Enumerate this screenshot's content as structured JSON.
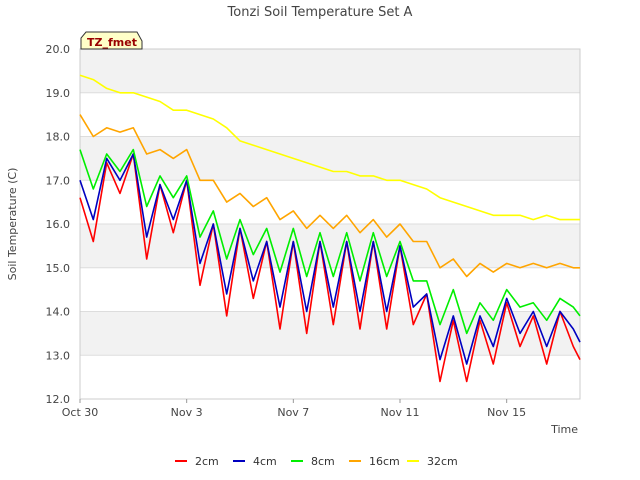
{
  "chart_data": {
    "type": "line",
    "title": "Tonzi Soil Temperature Set A",
    "xlabel": "Time",
    "ylabel": "Soil Temperature (C)",
    "ylim": [
      12.0,
      20.0
    ],
    "xlim": [
      "Oct 30",
      "Nov 17 18:00"
    ],
    "grid": true,
    "legend": "bottom",
    "site_badge": "TZ_fmet",
    "x_ticks": [
      "Oct 30",
      "Nov 3",
      "Nov 7",
      "Nov 11",
      "Nov 15"
    ],
    "y_ticks": [
      "12.0",
      "13.0",
      "14.0",
      "15.0",
      "16.0",
      "17.0",
      "18.0",
      "19.0",
      "20.0"
    ],
    "x": [
      "Oct 30",
      "Oct 30 12:00",
      "Oct 31",
      "Oct 31 12:00",
      "Nov 1",
      "Nov 1 12:00",
      "Nov 2",
      "Nov 2 12:00",
      "Nov 3",
      "Nov 3 12:00",
      "Nov 4",
      "Nov 4 12:00",
      "Nov 5",
      "Nov 5 12:00",
      "Nov 6",
      "Nov 6 12:00",
      "Nov 7",
      "Nov 7 12:00",
      "Nov 8",
      "Nov 8 12:00",
      "Nov 9",
      "Nov 9 12:00",
      "Nov 10",
      "Nov 10 12:00",
      "Nov 11",
      "Nov 11 12:00",
      "Nov 12",
      "Nov 12 12:00",
      "Nov 13",
      "Nov 13 12:00",
      "Nov 14",
      "Nov 14 12:00",
      "Nov 15",
      "Nov 15 12:00",
      "Nov 16",
      "Nov 16 12:00",
      "Nov 17",
      "Nov 17 12:00",
      "Nov 17 18:00"
    ],
    "series": [
      {
        "name": "2cm",
        "color": "#ff0000",
        "values": [
          16.6,
          15.6,
          17.4,
          16.7,
          17.6,
          15.2,
          16.9,
          15.8,
          17.0,
          14.6,
          16.0,
          13.9,
          15.9,
          14.3,
          15.6,
          13.6,
          15.6,
          13.5,
          15.6,
          13.7,
          15.6,
          13.6,
          15.6,
          13.6,
          15.5,
          13.7,
          14.4,
          12.4,
          13.8,
          12.4,
          13.8,
          12.8,
          14.2,
          13.2,
          13.9,
          12.8,
          14.0,
          13.2,
          12.9
        ]
      },
      {
        "name": "4cm",
        "color": "#0000c0",
        "values": [
          17.0,
          16.1,
          17.5,
          17.0,
          17.6,
          15.7,
          16.9,
          16.1,
          17.0,
          15.1,
          16.0,
          14.4,
          15.9,
          14.7,
          15.6,
          14.1,
          15.6,
          14.0,
          15.6,
          14.1,
          15.6,
          14.0,
          15.6,
          14.0,
          15.5,
          14.1,
          14.4,
          12.9,
          13.9,
          12.8,
          13.9,
          13.2,
          14.3,
          13.5,
          14.0,
          13.2,
          14.0,
          13.6,
          13.3
        ]
      },
      {
        "name": "8cm",
        "color": "#00ee00",
        "values": [
          17.7,
          16.8,
          17.6,
          17.2,
          17.7,
          16.4,
          17.1,
          16.6,
          17.1,
          15.7,
          16.3,
          15.2,
          16.1,
          15.3,
          15.9,
          14.9,
          15.9,
          14.8,
          15.8,
          14.8,
          15.8,
          14.7,
          15.8,
          14.8,
          15.6,
          14.7,
          14.7,
          13.7,
          14.5,
          13.5,
          14.2,
          13.8,
          14.5,
          14.1,
          14.2,
          13.8,
          14.3,
          14.1,
          13.9
        ]
      },
      {
        "name": "16cm",
        "color": "#ffa500",
        "values": [
          18.5,
          18.0,
          18.2,
          18.1,
          18.2,
          17.6,
          17.7,
          17.5,
          17.7,
          17.0,
          17.0,
          16.5,
          16.7,
          16.4,
          16.6,
          16.1,
          16.3,
          15.9,
          16.2,
          15.9,
          16.2,
          15.8,
          16.1,
          15.7,
          16.0,
          15.6,
          15.6,
          15.0,
          15.2,
          14.8,
          15.1,
          14.9,
          15.1,
          15.0,
          15.1,
          15.0,
          15.1,
          15.0,
          15.0
        ]
      },
      {
        "name": "32cm",
        "color": "#ffff00",
        "values": [
          19.4,
          19.3,
          19.1,
          19.0,
          19.0,
          18.9,
          18.8,
          18.6,
          18.6,
          18.5,
          18.4,
          18.2,
          17.9,
          17.8,
          17.7,
          17.6,
          17.5,
          17.4,
          17.3,
          17.2,
          17.2,
          17.1,
          17.1,
          17.0,
          17.0,
          16.9,
          16.8,
          16.6,
          16.5,
          16.4,
          16.3,
          16.2,
          16.2,
          16.2,
          16.1,
          16.2,
          16.1,
          16.1,
          16.1
        ]
      }
    ]
  }
}
